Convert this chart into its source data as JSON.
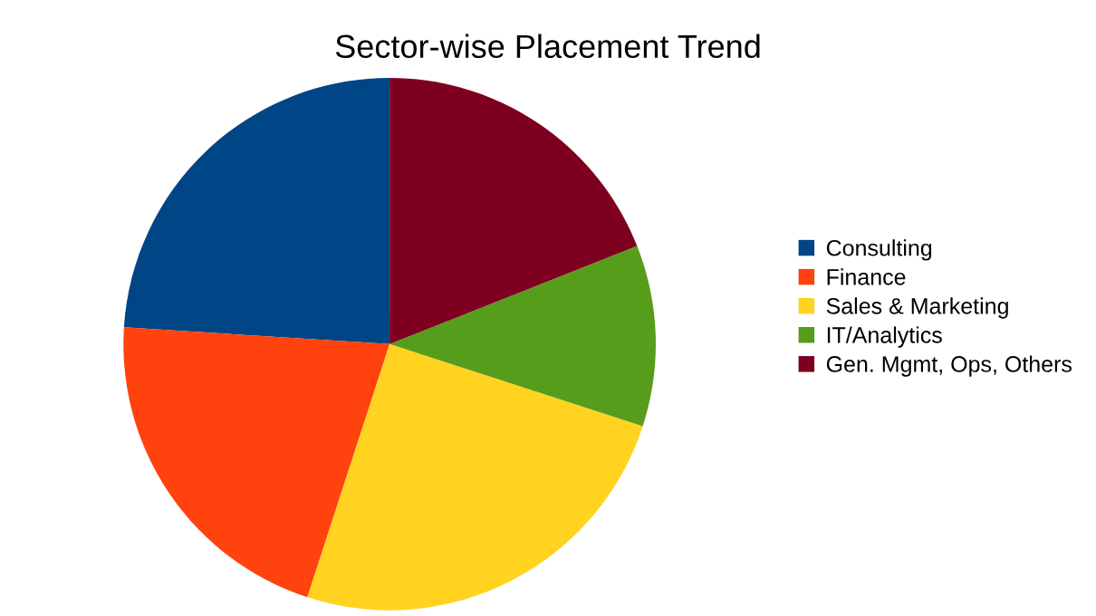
{
  "chart_data": {
    "type": "pie",
    "title": "Sector-wise Placement Trend",
    "categories": [
      "Consulting",
      "Finance",
      "Sales & Marketing",
      "IT/Analytics",
      "Gen. Mgmt, Ops, Others"
    ],
    "values": [
      24,
      21,
      25,
      11,
      19
    ],
    "colors": [
      "#004586",
      "#ff420e",
      "#ffd320",
      "#579d1c",
      "#7e0021"
    ],
    "legend": "right"
  }
}
